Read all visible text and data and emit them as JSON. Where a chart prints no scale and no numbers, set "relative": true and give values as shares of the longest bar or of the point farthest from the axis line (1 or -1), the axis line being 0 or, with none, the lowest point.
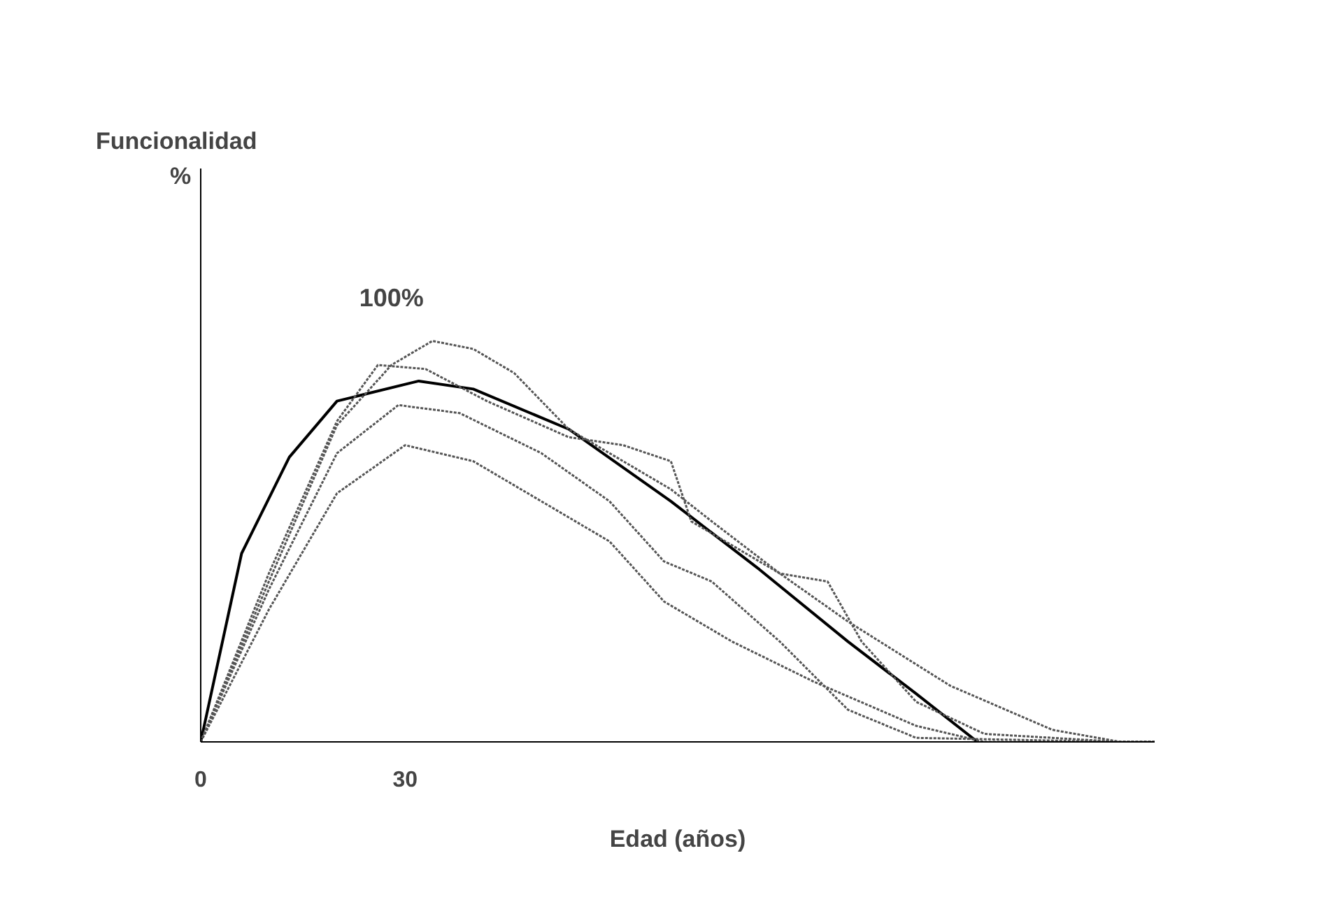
{
  "chart_data": {
    "type": "line",
    "title": "Funcionalidad",
    "xlabel": "Edad (años)",
    "relative": true,
    "xlim": [
      0,
      140
    ],
    "xticks": [
      0,
      30
    ],
    "grid": false,
    "marker": "none",
    "annotations": [
      "%",
      "100%"
    ],
    "series": [
      {
        "color": "#000000",
        "line_style": "solid",
        "x": [
          0,
          6,
          13,
          20,
          32,
          40,
          54,
          69,
          82,
          95,
          105,
          114
        ],
        "values": [
          0,
          0.47,
          0.71,
          0.85,
          0.9,
          0.88,
          0.78,
          0.6,
          0.43,
          0.25,
          0.12,
          0
        ]
      },
      {
        "color": "#555555",
        "line_style": "dotted",
        "x": [
          0,
          10,
          20,
          28,
          34,
          40,
          46,
          54,
          62,
          69,
          75,
          85,
          95,
          110,
          125,
          135,
          140
        ],
        "values": [
          0,
          0.4,
          0.79,
          0.94,
          1.0,
          0.98,
          0.92,
          0.78,
          0.7,
          0.63,
          0.55,
          0.42,
          0.3,
          0.14,
          0.03,
          0,
          0
        ]
      },
      {
        "color": "#555555",
        "line_style": "dotted",
        "x": [
          0,
          10,
          20,
          26,
          33,
          42,
          54,
          62,
          69,
          72,
          77,
          85,
          92,
          97,
          105,
          115,
          135,
          140
        ],
        "values": [
          0,
          0.42,
          0.8,
          0.94,
          0.93,
          0.85,
          0.76,
          0.74,
          0.7,
          0.55,
          0.5,
          0.42,
          0.4,
          0.25,
          0.1,
          0.02,
          0,
          0
        ]
      },
      {
        "color": "#555555",
        "line_style": "dotted",
        "x": [
          0,
          10,
          20,
          29,
          38,
          50,
          60,
          68,
          75,
          85,
          95,
          105,
          135,
          140
        ],
        "values": [
          0,
          0.38,
          0.72,
          0.84,
          0.82,
          0.72,
          0.6,
          0.45,
          0.4,
          0.25,
          0.08,
          0.01,
          0,
          0
        ]
      },
      {
        "color": "#555555",
        "line_style": "dotted",
        "x": [
          0,
          10,
          20,
          30,
          40,
          52,
          60,
          68,
          78,
          90,
          105,
          115,
          135,
          140
        ],
        "values": [
          0,
          0.33,
          0.62,
          0.74,
          0.7,
          0.58,
          0.5,
          0.35,
          0.25,
          0.15,
          0.04,
          0,
          0,
          0
        ]
      }
    ]
  }
}
